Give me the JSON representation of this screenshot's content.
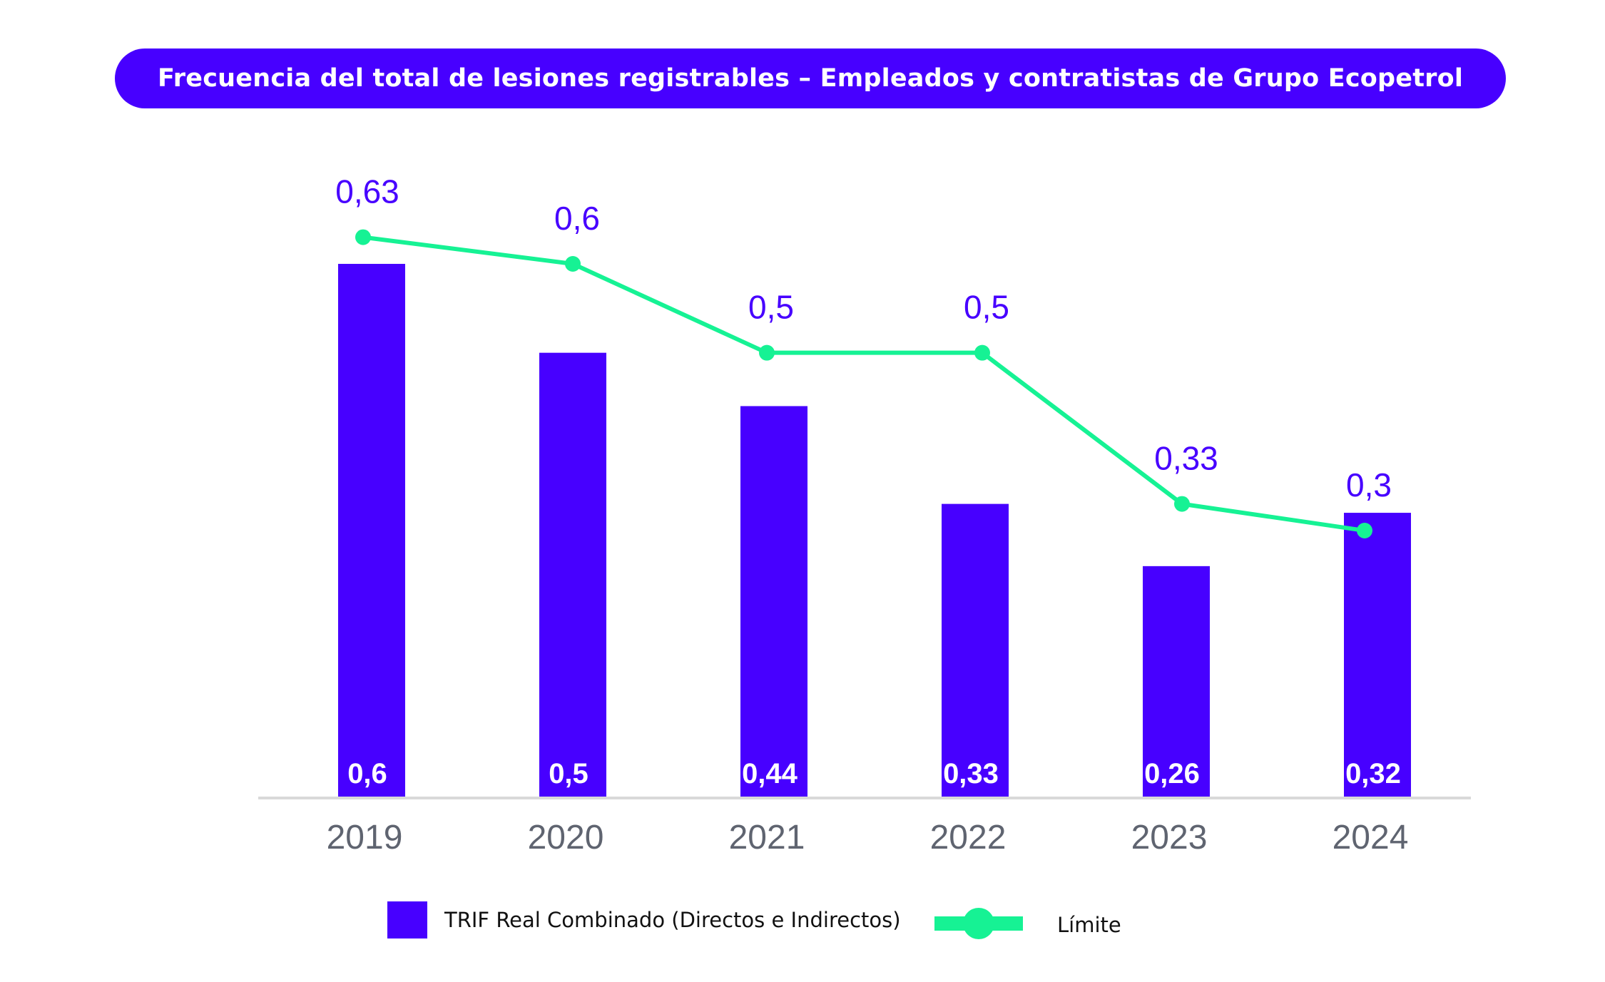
{
  "title": "Frecuencia del total de lesiones registrables – Empleados y contratistas de Grupo Ecopetrol",
  "colors": {
    "bar": "#4700ff",
    "line": "#16f294",
    "line_label": "#4700ff",
    "bar_label": "#ffffff",
    "axis_tick": "#5f6470",
    "axis_line": "#d9d9d9"
  },
  "chart_data": {
    "type": "bar",
    "title": "Frecuencia del total de lesiones registrables – Empleados y contratistas de Grupo Ecopetrol",
    "categories": [
      "2019",
      "2020",
      "2021",
      "2022",
      "2023",
      "2024"
    ],
    "series": [
      {
        "name": "TRIF Real Combinado (Directos e Indirectos)",
        "type": "bar",
        "values": [
          0.6,
          0.5,
          0.44,
          0.33,
          0.26,
          0.32
        ],
        "labels": [
          "0,6",
          "0,5",
          "0,44",
          "0,33",
          "0,26",
          "0,32"
        ]
      },
      {
        "name": "Límite",
        "type": "line",
        "values": [
          0.63,
          0.6,
          0.5,
          0.5,
          0.33,
          0.3
        ],
        "labels": [
          "0,63",
          "0,6",
          "0,5",
          "0,5",
          "0,33",
          "0,3"
        ]
      }
    ],
    "ylim": [
      0,
      0.6
    ],
    "grid": false,
    "legend_position": "bottom"
  }
}
